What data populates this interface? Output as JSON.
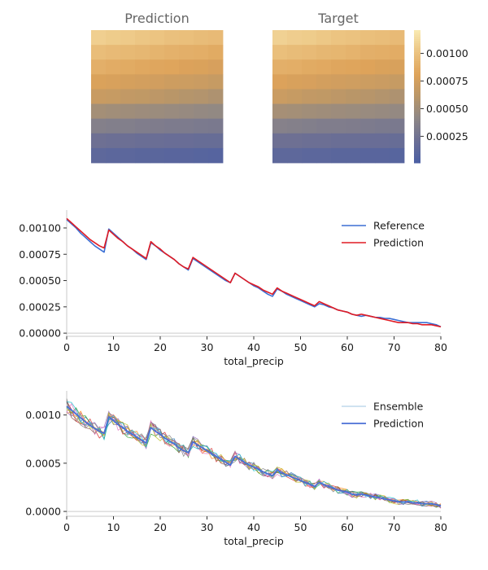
{
  "colors": {
    "reference": "#3b6fd4",
    "prediction_line": "#e01b24",
    "ensemble_prediction": "#4a6fd6",
    "axis": "#c8c8c8",
    "grid": "#cccccc",
    "colormap": [
      "#4c5fa3",
      "#6c6f94",
      "#8e8786",
      "#b99668",
      "#dea35a",
      "#ebc27f",
      "#f8e8b0"
    ],
    "ensemble_palette": [
      "#1f77b4",
      "#ff7f0e",
      "#2ca02c",
      "#d62728",
      "#9467bd",
      "#8c564b",
      "#e377c2",
      "#7f7f7f",
      "#bcbd22",
      "#17becf"
    ]
  },
  "heatmaps": {
    "prediction_title": "Prediction",
    "target_title": "Target",
    "colorbar": {
      "min": 1e-05,
      "max": 0.00121,
      "tick_values": [
        0.00025,
        0.0005,
        0.00075,
        0.001
      ],
      "tick_labels": [
        "0.00025",
        "0.00050",
        "0.00075",
        "0.00100"
      ]
    }
  },
  "chart_data": [
    {
      "type": "heatmap",
      "name": "Prediction",
      "rows": 9,
      "cols": 9,
      "values": [
        [
          0.00108,
          0.00106,
          0.00105,
          0.00103,
          0.00102,
          0.001,
          0.00099,
          0.00097,
          0.00096
        ],
        [
          0.00098,
          0.00096,
          0.00095,
          0.00094,
          0.00092,
          0.0009,
          0.00089,
          0.00088,
          0.00086
        ],
        [
          0.00089,
          0.00087,
          0.00086,
          0.00084,
          0.00083,
          0.00082,
          0.0008,
          0.00079,
          0.00077
        ],
        [
          0.00079,
          0.00078,
          0.00076,
          0.00075,
          0.00074,
          0.00072,
          0.00071,
          0.0007,
          0.00068
        ],
        [
          0.00069,
          0.00068,
          0.00066,
          0.00065,
          0.00063,
          0.00061,
          0.00059,
          0.00058,
          0.00056
        ],
        [
          0.00051,
          0.0005,
          0.00049,
          0.00048,
          0.00047,
          0.00046,
          0.00045,
          0.00044,
          0.00043
        ],
        [
          0.00035,
          0.00034,
          0.00034,
          0.00033,
          0.00032,
          0.00031,
          0.00031,
          0.0003,
          0.00029
        ],
        [
          0.00022,
          0.00021,
          0.00021,
          0.0002,
          0.0002,
          0.00019,
          0.00019,
          0.00018,
          0.00018
        ],
        [
          0.00012,
          0.00011,
          0.00011,
          0.0001,
          0.0001,
          9e-05,
          9e-05,
          8e-05,
          7e-05
        ]
      ]
    },
    {
      "type": "heatmap",
      "name": "Target",
      "rows": 9,
      "cols": 9,
      "values": [
        [
          0.00109,
          0.00107,
          0.00106,
          0.00104,
          0.00102,
          0.00101,
          0.00099,
          0.00098,
          0.00096
        ],
        [
          0.00099,
          0.00097,
          0.00096,
          0.00094,
          0.00093,
          0.00091,
          0.00089,
          0.00088,
          0.00087
        ],
        [
          0.00089,
          0.00088,
          0.00086,
          0.00085,
          0.00083,
          0.00082,
          0.00081,
          0.00079,
          0.00078
        ],
        [
          0.0008,
          0.00078,
          0.00077,
          0.00075,
          0.00074,
          0.00073,
          0.00071,
          0.0007,
          0.00068
        ],
        [
          0.0007,
          0.00068,
          0.00066,
          0.00065,
          0.00063,
          0.00061,
          0.0006,
          0.00058,
          0.00056
        ],
        [
          0.00052,
          0.00051,
          0.0005,
          0.00049,
          0.00048,
          0.00047,
          0.00046,
          0.00045,
          0.00044
        ],
        [
          0.00036,
          0.00035,
          0.00034,
          0.00033,
          0.00033,
          0.00032,
          0.00031,
          0.0003,
          0.00029
        ],
        [
          0.00022,
          0.00022,
          0.00021,
          0.00021,
          0.0002,
          0.0002,
          0.00019,
          0.00019,
          0.00018
        ],
        [
          0.00012,
          0.00012,
          0.00011,
          0.00011,
          0.0001,
          0.0001,
          9e-05,
          9e-05,
          8e-05
        ]
      ]
    },
    {
      "type": "line",
      "xlabel": "total_precip",
      "ylabel": "",
      "xlim": [
        0,
        80
      ],
      "ylim": [
        -3e-05,
        0.00117
      ],
      "xticks": [
        0,
        10,
        20,
        30,
        40,
        50,
        60,
        70,
        80
      ],
      "yticks": [
        0,
        0.00025,
        0.0005,
        0.00075,
        0.001
      ],
      "ytick_labels": [
        "0.00000",
        "0.00025",
        "0.00050",
        "0.00075",
        "0.00100"
      ],
      "legend_position": "top-right",
      "series": [
        {
          "name": "Reference",
          "x": [
            0,
            1,
            2,
            3,
            4,
            5,
            6,
            7,
            8,
            9,
            10,
            11,
            12,
            13,
            14,
            15,
            16,
            17,
            18,
            19,
            20,
            21,
            22,
            23,
            24,
            25,
            26,
            27,
            28,
            29,
            30,
            31,
            32,
            33,
            34,
            35,
            36,
            37,
            38,
            39,
            40,
            41,
            42,
            43,
            44,
            45,
            46,
            47,
            48,
            49,
            50,
            51,
            52,
            53,
            54,
            55,
            56,
            57,
            58,
            59,
            60,
            61,
            62,
            63,
            64,
            65,
            66,
            67,
            68,
            69,
            70,
            71,
            72,
            73,
            74,
            75,
            76,
            77,
            78,
            79,
            80
          ],
          "y": [
            0.00108,
            0.00104,
            0.001,
            0.00095,
            0.00091,
            0.00087,
            0.00083,
            0.0008,
            0.00077,
            0.00099,
            0.00095,
            0.00091,
            0.00087,
            0.00083,
            0.0008,
            0.00076,
            0.00073,
            0.0007,
            0.00086,
            0.00083,
            0.00079,
            0.00076,
            0.00073,
            0.0007,
            0.00066,
            0.00063,
            0.0006,
            0.00071,
            0.00068,
            0.00065,
            0.00062,
            0.00059,
            0.00056,
            0.00053,
            0.0005,
            0.00048,
            0.00057,
            0.00054,
            0.00051,
            0.00048,
            0.00045,
            0.00043,
            0.0004,
            0.00037,
            0.00035,
            0.00042,
            0.0004,
            0.00037,
            0.00035,
            0.00033,
            0.00031,
            0.00029,
            0.00027,
            0.00025,
            0.00028,
            0.00027,
            0.00025,
            0.00024,
            0.00022,
            0.00021,
            0.0002,
            0.00018,
            0.00017,
            0.00016,
            0.00017,
            0.00016,
            0.00015,
            0.00015,
            0.00014,
            0.00014,
            0.00013,
            0.00012,
            0.00011,
            0.0001,
            0.0001,
            0.0001,
            0.0001,
            0.0001,
            9e-05,
            8e-05,
            6e-05
          ]
        },
        {
          "name": "Prediction",
          "x": [
            0,
            1,
            2,
            3,
            4,
            5,
            6,
            7,
            8,
            9,
            10,
            11,
            12,
            13,
            14,
            15,
            16,
            17,
            18,
            19,
            20,
            21,
            22,
            23,
            24,
            25,
            26,
            27,
            28,
            29,
            30,
            31,
            32,
            33,
            34,
            35,
            36,
            37,
            38,
            39,
            40,
            41,
            42,
            43,
            44,
            45,
            46,
            47,
            48,
            49,
            50,
            51,
            52,
            53,
            54,
            55,
            56,
            57,
            58,
            59,
            60,
            61,
            62,
            63,
            64,
            65,
            66,
            67,
            68,
            69,
            70,
            71,
            72,
            73,
            74,
            75,
            76,
            77,
            78,
            79,
            80
          ],
          "y": [
            0.00109,
            0.00105,
            0.00101,
            0.00097,
            0.00093,
            0.00089,
            0.00086,
            0.00083,
            0.00081,
            0.00098,
            0.00094,
            0.0009,
            0.00087,
            0.00083,
            0.0008,
            0.00077,
            0.00074,
            0.00071,
            0.00087,
            0.00083,
            0.0008,
            0.00076,
            0.00073,
            0.0007,
            0.00066,
            0.00063,
            0.00061,
            0.00072,
            0.00069,
            0.00066,
            0.00063,
            0.0006,
            0.00057,
            0.00054,
            0.00051,
            0.00048,
            0.00057,
            0.00054,
            0.00051,
            0.00048,
            0.00046,
            0.00044,
            0.00041,
            0.00039,
            0.00037,
            0.00043,
            0.0004,
            0.00038,
            0.00036,
            0.00034,
            0.00032,
            0.0003,
            0.00028,
            0.00026,
            0.0003,
            0.00028,
            0.00026,
            0.00024,
            0.00022,
            0.00021,
            0.0002,
            0.00018,
            0.00017,
            0.00018,
            0.00017,
            0.00016,
            0.00015,
            0.00014,
            0.00013,
            0.00012,
            0.00011,
            0.0001,
            0.0001,
            0.0001,
            9e-05,
            9e-05,
            8e-05,
            8e-05,
            8e-05,
            7e-05,
            6e-05
          ]
        }
      ]
    },
    {
      "type": "line",
      "xlabel": "total_precip",
      "ylabel": "",
      "xlim": [
        0,
        80
      ],
      "ylim": [
        -5e-05,
        0.00125
      ],
      "xticks": [
        0,
        10,
        20,
        30,
        40,
        50,
        60,
        70,
        80
      ],
      "yticks": [
        0,
        0.0005,
        0.001
      ],
      "ytick_labels": [
        "0.0000",
        "0.0005",
        "0.0010"
      ],
      "legend_position": "top-right",
      "ensemble_members": 10,
      "ensemble_spread": 6e-05,
      "series": [
        {
          "name": "Ensemble",
          "x": [
            0,
            1,
            2,
            3,
            4,
            5,
            6,
            7,
            8,
            9,
            10,
            11,
            12,
            13,
            14,
            15,
            16,
            17,
            18,
            19,
            20,
            21,
            22,
            23,
            24,
            25,
            26,
            27,
            28,
            29,
            30,
            31,
            32,
            33,
            34,
            35,
            36,
            37,
            38,
            39,
            40,
            41,
            42,
            43,
            44,
            45,
            46,
            47,
            48,
            49,
            50,
            51,
            52,
            53,
            54,
            55,
            56,
            57,
            58,
            59,
            60,
            61,
            62,
            63,
            64,
            65,
            66,
            67,
            68,
            69,
            70,
            71,
            72,
            73,
            74,
            75,
            76,
            77,
            78,
            79,
            80
          ],
          "y": [
            0.00109,
            0.00105,
            0.00101,
            0.00097,
            0.00093,
            0.00089,
            0.00086,
            0.00083,
            0.00081,
            0.00098,
            0.00094,
            0.0009,
            0.00087,
            0.00083,
            0.0008,
            0.00077,
            0.00074,
            0.00071,
            0.00087,
            0.00083,
            0.0008,
            0.00076,
            0.00073,
            0.0007,
            0.00066,
            0.00063,
            0.00061,
            0.00072,
            0.00069,
            0.00066,
            0.00063,
            0.0006,
            0.00057,
            0.00054,
            0.00051,
            0.00048,
            0.00057,
            0.00054,
            0.00051,
            0.00048,
            0.00046,
            0.00044,
            0.00041,
            0.00039,
            0.00037,
            0.00043,
            0.0004,
            0.00038,
            0.00036,
            0.00034,
            0.00032,
            0.0003,
            0.00028,
            0.00026,
            0.0003,
            0.00028,
            0.00026,
            0.00024,
            0.00022,
            0.00021,
            0.0002,
            0.00018,
            0.00017,
            0.00018,
            0.00017,
            0.00016,
            0.00015,
            0.00014,
            0.00013,
            0.00012,
            0.00011,
            0.0001,
            0.0001,
            0.0001,
            9e-05,
            9e-05,
            8e-05,
            8e-05,
            8e-05,
            7e-05,
            6e-05
          ]
        },
        {
          "name": "Prediction",
          "x": [
            0,
            1,
            2,
            3,
            4,
            5,
            6,
            7,
            8,
            9,
            10,
            11,
            12,
            13,
            14,
            15,
            16,
            17,
            18,
            19,
            20,
            21,
            22,
            23,
            24,
            25,
            26,
            27,
            28,
            29,
            30,
            31,
            32,
            33,
            34,
            35,
            36,
            37,
            38,
            39,
            40,
            41,
            42,
            43,
            44,
            45,
            46,
            47,
            48,
            49,
            50,
            51,
            52,
            53,
            54,
            55,
            56,
            57,
            58,
            59,
            60,
            61,
            62,
            63,
            64,
            65,
            66,
            67,
            68,
            69,
            70,
            71,
            72,
            73,
            74,
            75,
            76,
            77,
            78,
            79,
            80
          ],
          "y": [
            0.00109,
            0.00105,
            0.00101,
            0.00097,
            0.00093,
            0.00089,
            0.00086,
            0.00083,
            0.00081,
            0.00098,
            0.00094,
            0.0009,
            0.00087,
            0.00083,
            0.0008,
            0.00077,
            0.00074,
            0.00071,
            0.00087,
            0.00083,
            0.0008,
            0.00076,
            0.00073,
            0.0007,
            0.00066,
            0.00063,
            0.00061,
            0.00072,
            0.00069,
            0.00066,
            0.00063,
            0.0006,
            0.00057,
            0.00054,
            0.00051,
            0.00048,
            0.00057,
            0.00054,
            0.00051,
            0.00048,
            0.00046,
            0.00044,
            0.00041,
            0.00039,
            0.00037,
            0.00043,
            0.0004,
            0.00038,
            0.00036,
            0.00034,
            0.00032,
            0.0003,
            0.00028,
            0.00026,
            0.0003,
            0.00028,
            0.00026,
            0.00024,
            0.00022,
            0.00021,
            0.0002,
            0.00018,
            0.00017,
            0.00018,
            0.00017,
            0.00016,
            0.00015,
            0.00014,
            0.00013,
            0.00012,
            0.00011,
            0.0001,
            0.0001,
            0.0001,
            9e-05,
            9e-05,
            8e-05,
            8e-05,
            8e-05,
            7e-05,
            6e-05
          ]
        }
      ]
    }
  ]
}
